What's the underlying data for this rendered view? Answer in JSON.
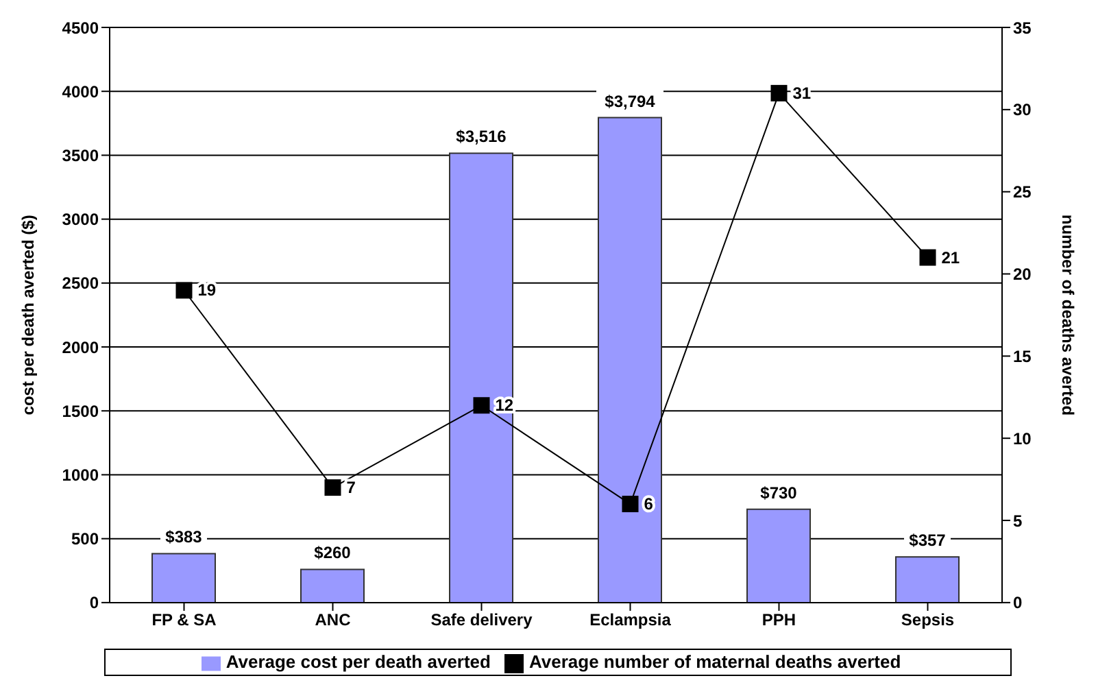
{
  "chart_data": {
    "type": "bar",
    "ylabel": "cost per death averted ($)",
    "y2label": "number of deaths averted",
    "categories": [
      "FP & SA",
      "ANC",
      "Safe delivery",
      "Eclampsia",
      "PPH",
      "Sepsis"
    ],
    "series": [
      {
        "name": "Average cost per death averted",
        "color": "#9999ff",
        "values": [
          383,
          260,
          3516,
          3794,
          730,
          357
        ],
        "value_labels": [
          "$383",
          "$260",
          "$3,516",
          "$3,794",
          "$730",
          "$357"
        ]
      },
      {
        "name": "Average number of maternal deaths averted",
        "type": "line",
        "axis": "y2",
        "color": "#000000",
        "marker": "square",
        "values": [
          19,
          7,
          12,
          6,
          31,
          21
        ],
        "data_labels": true
      }
    ],
    "ylim": [
      0,
      4500
    ],
    "yticks": [
      0,
      500,
      1000,
      1500,
      2000,
      2500,
      3000,
      3500,
      4000,
      4500
    ],
    "y2lim": [
      0,
      35
    ],
    "y2ticks": [
      0,
      5,
      10,
      15,
      20,
      25,
      30,
      35
    ],
    "grid": "y",
    "legend": "bottom"
  }
}
